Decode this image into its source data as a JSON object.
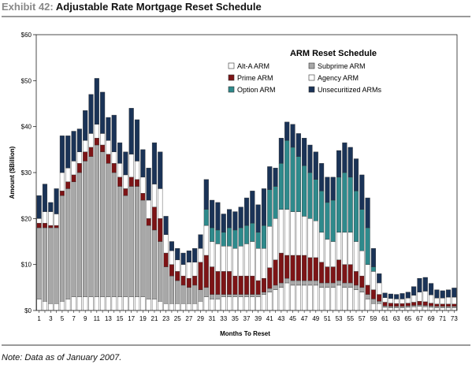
{
  "exhibit": {
    "label": "Exhibit 42:",
    "title": "Adjustable Rate Mortgage Reset Schedule"
  },
  "note": "Note: Data as of January 2007.",
  "chart_data": {
    "type": "bar",
    "stacked": true,
    "title": "ARM Reset Schedule",
    "xlabel": "Months To Reset",
    "ylabel": "Amount ($Billion)",
    "ylim": [
      0,
      60
    ],
    "yticks": [
      "$0",
      "$10",
      "$20",
      "$30",
      "$40",
      "$50",
      "$60"
    ],
    "legend_position": "top-right, inside plot",
    "series_order_bottom_to_top": [
      "Alt-A ARM",
      "Subprime ARM",
      "Prime ARM",
      "Agency ARM",
      "Option ARM",
      "Unsecuritized ARMs"
    ],
    "legend": [
      {
        "name": "Alt-A ARM",
        "color": "#ffffff"
      },
      {
        "name": "Subprime ARM",
        "color": "#a8a8a8"
      },
      {
        "name": "Prime ARM",
        "color": "#7d1416"
      },
      {
        "name": "Agency ARM",
        "color": "#ffffff"
      },
      {
        "name": "Option ARM",
        "color": "#2e8a8c"
      },
      {
        "name": "Unsecuritized ARMs",
        "color": "#1a3357"
      }
    ],
    "categories": [
      1,
      2,
      3,
      4,
      5,
      6,
      7,
      8,
      9,
      10,
      11,
      12,
      13,
      14,
      15,
      16,
      17,
      18,
      19,
      20,
      21,
      22,
      23,
      24,
      25,
      26,
      27,
      28,
      29,
      30,
      31,
      32,
      33,
      34,
      35,
      36,
      37,
      38,
      39,
      40,
      41,
      42,
      43,
      44,
      45,
      46,
      47,
      48,
      49,
      50,
      51,
      52,
      53,
      54,
      55,
      56,
      57,
      58,
      59,
      60,
      61,
      62,
      63,
      64,
      65,
      66,
      67,
      68,
      69,
      70,
      71,
      72,
      73
    ],
    "xtick_labels": [
      "1",
      "3",
      "5",
      "7",
      "9",
      "11",
      "13",
      "15",
      "17",
      "19",
      "21",
      "23",
      "25",
      "27",
      "29",
      "31",
      "33",
      "35",
      "37",
      "39",
      "41",
      "43",
      "45",
      "47",
      "49",
      "51",
      "53",
      "55",
      "57",
      "59",
      "61",
      "63",
      "65",
      "67",
      "69",
      "71",
      "73"
    ],
    "series": [
      {
        "name": "Alt-A ARM",
        "color": "#ffffff",
        "values": [
          2.5,
          2,
          1.5,
          1.5,
          2,
          2.5,
          3,
          3,
          3,
          3,
          3,
          3,
          3,
          3,
          3,
          3,
          3,
          3,
          3,
          2.5,
          2.5,
          2,
          1.5,
          1.5,
          1.5,
          1.5,
          1.5,
          1.5,
          2,
          3,
          2.5,
          2.5,
          3,
          3,
          3,
          3,
          3,
          3,
          3,
          3.5,
          4,
          4.5,
          5,
          6,
          5.5,
          5.5,
          5.5,
          5.5,
          5.5,
          5,
          5,
          5,
          5.5,
          5,
          5,
          4.5,
          4,
          2.5,
          1.5,
          1.5,
          0.7,
          0.6,
          0.6,
          0.6,
          0.7,
          0.8,
          0.9,
          0.8,
          0.7,
          0.6,
          0.6,
          0.6,
          0.6
        ]
      },
      {
        "name": "Subprime ARM",
        "color": "#a8a8a8",
        "values": [
          15.5,
          16,
          16.5,
          16.5,
          23,
          24,
          25,
          27,
          29.5,
          30.5,
          33,
          31.5,
          29,
          27,
          24,
          22,
          24,
          24,
          21,
          16,
          15,
          13,
          8,
          6,
          5,
          4,
          3.5,
          4,
          2.5,
          2,
          1,
          1,
          0.5,
          0.5,
          0.5,
          0.5,
          0.5,
          0.5,
          0.5,
          0.5,
          0.8,
          1,
          1,
          1,
          1,
          1,
          1,
          1,
          1,
          1,
          1,
          1,
          1,
          1,
          1,
          1,
          1,
          1,
          1,
          0.5,
          0.3,
          0.3,
          0.3,
          0.3,
          0.3,
          0.3,
          0.3,
          0.3,
          0.3,
          0.3,
          0.3,
          0.3,
          0.3
        ]
      },
      {
        "name": "Prime ARM",
        "color": "#7d1416",
        "values": [
          1,
          1,
          0.5,
          0.5,
          1,
          1.5,
          1.5,
          2,
          2,
          2,
          1.5,
          1.5,
          2,
          2,
          2,
          1.5,
          2,
          1.5,
          1.5,
          1.5,
          5,
          5,
          3,
          2.5,
          2,
          2,
          2,
          2,
          6,
          7,
          6,
          5,
          5,
          5,
          4,
          4,
          4,
          4,
          3,
          3,
          4.5,
          5.5,
          6.5,
          5,
          5.5,
          5.5,
          5.5,
          5,
          5,
          4.5,
          3.5,
          3.5,
          4.5,
          4,
          4,
          3,
          2.5,
          2,
          2,
          1.5,
          0.8,
          0.7,
          0.6,
          0.6,
          0.6,
          0.7,
          0.8,
          0.8,
          0.6,
          0.5,
          0.5,
          0.5,
          0.5
        ]
      },
      {
        "name": "Agency ARM",
        "color": "#ffffff",
        "values": [
          1,
          2.5,
          3,
          2.5,
          4,
          3,
          3,
          2.5,
          2.5,
          3,
          3,
          2.5,
          3,
          2.5,
          3,
          3,
          5,
          4,
          3.5,
          4,
          5,
          6.5,
          4,
          3,
          2.5,
          2.5,
          3.5,
          3,
          3,
          6.5,
          5.5,
          6,
          5.5,
          5.5,
          6,
          6.5,
          7,
          7.5,
          7,
          6.5,
          9,
          9,
          9.5,
          10,
          9.5,
          9.5,
          8.5,
          8.5,
          8,
          6.5,
          6,
          5.5,
          6,
          7,
          7,
          6.5,
          5.5,
          4.5,
          4,
          2.5,
          1,
          1,
          1,
          1,
          1.1,
          1.5,
          2,
          2.3,
          1.8,
          1.3,
          1.3,
          1.5,
          1.5
        ]
      },
      {
        "name": "Option ARM",
        "color": "#2e8a8c",
        "values": [
          0,
          0,
          0,
          0,
          0,
          0,
          0,
          0,
          0,
          0,
          0,
          0,
          0,
          0,
          0,
          0,
          0,
          0,
          0,
          0,
          0,
          0,
          0,
          0,
          0,
          0,
          0,
          0,
          0,
          3.5,
          3,
          3,
          3,
          4,
          4,
          4,
          4,
          4,
          3.5,
          5,
          8,
          7,
          10,
          15,
          14,
          12,
          11,
          10,
          9,
          9,
          8,
          9,
          12,
          13,
          12,
          11,
          9,
          8,
          1,
          0,
          0,
          0,
          0,
          0,
          0,
          0,
          0,
          0,
          0,
          0,
          0,
          0,
          0
        ]
      },
      {
        "name": "Unsecuritized ARMs",
        "color": "#1a3357",
        "values": [
          5,
          6,
          2,
          5.5,
          8,
          7,
          6.5,
          5,
          6.5,
          8.5,
          10,
          9,
          5,
          8,
          4.5,
          5,
          10,
          9,
          6,
          7,
          9,
          8,
          4,
          2,
          2.5,
          2.5,
          2.5,
          3,
          3,
          6.5,
          6,
          6,
          4,
          4,
          4,
          4.5,
          6,
          7,
          6,
          8,
          5,
          4,
          5.5,
          4,
          5,
          5,
          6,
          6,
          6,
          6,
          5.5,
          5,
          5.8,
          6.5,
          6.5,
          7,
          7.5,
          6.5,
          4,
          2,
          1,
          1,
          1,
          1.2,
          1.3,
          1.9,
          3,
          3,
          2.5,
          1.8,
          1.6,
          1.6,
          2
        ]
      }
    ]
  }
}
